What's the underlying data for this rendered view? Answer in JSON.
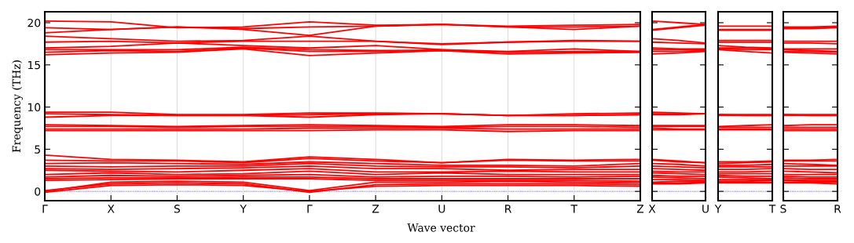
{
  "chart_data": [
    {
      "type": "line",
      "ylabel": "Frequency (THz)",
      "xlabel": "Wave vector",
      "categories": [
        "Γ",
        "X",
        "S",
        "Y",
        "Γ",
        "Z",
        "U",
        "R",
        "T",
        "Z"
      ],
      "ylim": [
        -1.1,
        21.3
      ],
      "yticks": [
        0,
        5,
        10,
        15,
        20
      ],
      "grid": "x",
      "line_style": "solid",
      "marker": "none",
      "ref_lines": [
        {
          "axis": "y",
          "value": 0,
          "color": "#0000ff",
          "line_style": "dotted"
        }
      ],
      "series": [
        {
          "color": "#ff0000",
          "values": [
            20.2,
            20.1,
            19.4,
            19.5,
            20.1,
            19.7,
            19.8,
            19.6,
            19.7,
            19.8
          ]
        },
        {
          "color": "#ff0000",
          "values": [
            19.4,
            19.2,
            19.5,
            19.3,
            19.5,
            19.6,
            19.8,
            19.5,
            19.2,
            19.6
          ]
        },
        {
          "color": "#ff0000",
          "values": [
            18.8,
            19.2,
            19.5,
            19.2,
            18.5,
            19.6,
            19.8,
            19.5,
            19.5,
            19.6
          ]
        },
        {
          "color": "#ff0000",
          "values": [
            18.4,
            18.1,
            17.8,
            17.9,
            18.4,
            17.8,
            17.5,
            17.7,
            17.9,
            17.8
          ]
        },
        {
          "color": "#ff0000",
          "values": [
            17.7,
            17.8,
            17.6,
            17.8,
            17.8,
            17.8,
            17.4,
            17.7,
            17.8,
            17.8
          ]
        },
        {
          "color": "#ff0000",
          "values": [
            17.0,
            17.2,
            17.6,
            17.3,
            17.0,
            17.3,
            16.8,
            16.6,
            16.9,
            16.6
          ]
        },
        {
          "color": "#ff0000",
          "values": [
            16.8,
            16.8,
            16.8,
            17.1,
            16.8,
            16.7,
            16.7,
            16.5,
            16.6,
            16.6
          ]
        },
        {
          "color": "#ff0000",
          "values": [
            16.5,
            16.7,
            16.6,
            17.0,
            16.6,
            16.6,
            16.8,
            16.5,
            16.5,
            16.5
          ]
        },
        {
          "color": "#ff0000",
          "values": [
            16.2,
            16.4,
            16.5,
            16.9,
            16.1,
            16.4,
            16.7,
            16.3,
            16.4,
            16.5
          ]
        },
        {
          "color": "#ff0000",
          "values": [
            9.4,
            9.4,
            9.1,
            9.1,
            9.3,
            9.3,
            9.2,
            9.0,
            9.2,
            9.3
          ]
        },
        {
          "color": "#ff0000",
          "values": [
            9.2,
            9.1,
            9.0,
            9.0,
            9.1,
            9.2,
            9.2,
            9.0,
            9.0,
            9.1
          ]
        },
        {
          "color": "#ff0000",
          "values": [
            8.8,
            9.0,
            9.0,
            9.0,
            8.8,
            9.1,
            9.2,
            9.0,
            9.0,
            9.1
          ]
        },
        {
          "color": "#ff0000",
          "values": [
            7.9,
            7.8,
            7.7,
            7.8,
            7.9,
            7.8,
            7.7,
            7.9,
            7.9,
            7.8
          ]
        },
        {
          "color": "#ff0000",
          "values": [
            7.7,
            7.7,
            7.6,
            7.7,
            7.7,
            7.7,
            7.6,
            7.7,
            7.7,
            7.6
          ]
        },
        {
          "color": "#ff0000",
          "values": [
            7.4,
            7.4,
            7.4,
            7.4,
            7.5,
            7.5,
            7.5,
            7.4,
            7.4,
            7.4
          ]
        },
        {
          "color": "#ff0000",
          "values": [
            7.2,
            7.2,
            7.2,
            7.2,
            7.2,
            7.3,
            7.3,
            7.1,
            7.2,
            7.2
          ]
        },
        {
          "color": "#ff0000",
          "values": [
            4.3,
            3.8,
            3.7,
            3.5,
            4.1,
            3.8,
            3.4,
            3.8,
            3.7,
            3.8
          ]
        },
        {
          "color": "#ff0000",
          "values": [
            3.7,
            3.6,
            3.6,
            3.4,
            3.9,
            3.6,
            3.4,
            3.7,
            3.6,
            3.6
          ]
        },
        {
          "color": "#ff0000",
          "values": [
            3.3,
            3.4,
            3.3,
            3.2,
            3.5,
            3.3,
            3.1,
            3.1,
            3.0,
            3.3
          ]
        },
        {
          "color": "#ff0000",
          "values": [
            3.0,
            2.9,
            3.0,
            3.0,
            3.3,
            3.0,
            2.9,
            2.9,
            2.8,
            3.0
          ]
        },
        {
          "color": "#ff0000",
          "values": [
            2.7,
            2.6,
            2.7,
            2.8,
            3.0,
            2.7,
            2.7,
            2.5,
            2.6,
            2.6
          ]
        },
        {
          "color": "#ff0000",
          "values": [
            2.5,
            2.4,
            2.3,
            2.5,
            2.7,
            2.3,
            2.3,
            2.4,
            2.3,
            2.3
          ]
        },
        {
          "color": "#ff0000",
          "values": [
            2.0,
            2.2,
            2.0,
            2.1,
            2.4,
            2.0,
            2.2,
            2.0,
            2.0,
            2.0
          ]
        },
        {
          "color": "#ff0000",
          "values": [
            1.7,
            1.9,
            1.8,
            1.9,
            2.0,
            1.7,
            1.8,
            1.8,
            1.7,
            1.8
          ]
        },
        {
          "color": "#ff0000",
          "values": [
            1.5,
            1.6,
            1.6,
            1.7,
            1.7,
            1.5,
            1.5,
            1.5,
            1.5,
            1.5
          ]
        },
        {
          "color": "#ff0000",
          "values": [
            1.3,
            1.4,
            1.5,
            1.5,
            1.5,
            1.3,
            1.3,
            1.3,
            1.3,
            1.2
          ]
        },
        {
          "color": "#ff0000",
          "values": [
            0,
            1.1,
            1.2,
            1.1,
            0.1,
            1.1,
            1.1,
            1.2,
            1.1,
            1.0
          ]
        },
        {
          "color": "#ff0000",
          "values": [
            0.1,
            0.9,
            1.0,
            0.9,
            -0.1,
            0.8,
            0.9,
            0.9,
            0.9,
            0.8
          ]
        },
        {
          "color": "#ff0000",
          "values": [
            -0.1,
            0.7,
            0.8,
            0.7,
            0,
            0.6,
            0.7,
            0.7,
            0.7,
            0.6
          ]
        }
      ]
    },
    {
      "type": "line",
      "categories": [
        "X",
        null,
        "U"
      ],
      "ylim": [
        -1.1,
        21.3
      ],
      "yticks": [
        0,
        5,
        10,
        15,
        20
      ],
      "tick_labels": "x",
      "line_style": "solid",
      "marker": "none",
      "ref_lines": [
        {
          "axis": "y",
          "value": 0,
          "color": "#0000ff",
          "line_style": "dotted"
        }
      ],
      "series": [
        {
          "color": "#ff0000",
          "values": [
            20.2,
            20.0,
            19.8
          ]
        },
        {
          "color": "#ff0000",
          "values": [
            19.2,
            19.5,
            19.8
          ]
        },
        {
          "color": "#ff0000",
          "values": [
            19.1,
            19.4,
            19.7
          ]
        },
        {
          "color": "#ff0000",
          "values": [
            18.1,
            17.9,
            17.6
          ]
        },
        {
          "color": "#ff0000",
          "values": [
            17.7,
            17.6,
            17.5
          ]
        },
        {
          "color": "#ff0000",
          "values": [
            17.0,
            16.9,
            16.9
          ]
        },
        {
          "color": "#ff0000",
          "values": [
            16.8,
            16.8,
            16.8
          ]
        },
        {
          "color": "#ff0000",
          "values": [
            16.6,
            16.6,
            16.7
          ]
        },
        {
          "color": "#ff0000",
          "values": [
            16.3,
            16.4,
            16.6
          ]
        },
        {
          "color": "#ff0000",
          "values": [
            9.4,
            9.3,
            9.2
          ]
        },
        {
          "color": "#ff0000",
          "values": [
            9.2,
            9.2,
            9.2
          ]
        },
        {
          "color": "#ff0000",
          "values": [
            9.1,
            9.1,
            9.2
          ]
        },
        {
          "color": "#ff0000",
          "values": [
            7.8,
            7.8,
            7.8
          ]
        },
        {
          "color": "#ff0000",
          "values": [
            7.7,
            7.7,
            7.7
          ]
        },
        {
          "color": "#ff0000",
          "values": [
            7.5,
            7.4,
            7.4
          ]
        },
        {
          "color": "#ff0000",
          "values": [
            7.3,
            7.3,
            7.3
          ]
        },
        {
          "color": "#ff0000",
          "values": [
            3.8,
            3.6,
            3.4
          ]
        },
        {
          "color": "#ff0000",
          "values": [
            3.7,
            3.5,
            3.4
          ]
        },
        {
          "color": "#ff0000",
          "values": [
            3.3,
            3.2,
            3.0
          ]
        },
        {
          "color": "#ff0000",
          "values": [
            3.0,
            2.9,
            2.8
          ]
        },
        {
          "color": "#ff0000",
          "values": [
            2.7,
            2.6,
            2.5
          ]
        },
        {
          "color": "#ff0000",
          "values": [
            2.4,
            2.3,
            2.3
          ]
        },
        {
          "color": "#ff0000",
          "values": [
            2.2,
            2.1,
            2.0
          ]
        },
        {
          "color": "#ff0000",
          "values": [
            1.9,
            1.8,
            1.8
          ]
        },
        {
          "color": "#ff0000",
          "values": [
            1.7,
            1.6,
            1.5
          ]
        },
        {
          "color": "#ff0000",
          "values": [
            1.4,
            1.4,
            1.3
          ]
        },
        {
          "color": "#ff0000",
          "values": [
            1.1,
            1.2,
            1.2
          ]
        },
        {
          "color": "#ff0000",
          "values": [
            1.0,
            1.0,
            1.1
          ]
        },
        {
          "color": "#ff0000",
          "values": [
            0.9,
            0.9,
            1.0
          ]
        }
      ]
    },
    {
      "type": "line",
      "categories": [
        "Y",
        null,
        "T"
      ],
      "ylim": [
        -1.1,
        21.3
      ],
      "yticks": [
        0,
        5,
        10,
        15,
        20
      ],
      "tick_labels": "x",
      "line_style": "solid",
      "marker": "none",
      "ref_lines": [
        {
          "axis": "y",
          "value": 0,
          "color": "#0000ff",
          "line_style": "dotted"
        }
      ],
      "series": [
        {
          "color": "#ff0000",
          "values": [
            19.6,
            19.6,
            19.6
          ]
        },
        {
          "color": "#ff0000",
          "values": [
            19.2,
            19.2,
            19.2
          ]
        },
        {
          "color": "#ff0000",
          "values": [
            19.1,
            19.1,
            19.1
          ]
        },
        {
          "color": "#ff0000",
          "values": [
            17.9,
            17.9,
            17.9
          ]
        },
        {
          "color": "#ff0000",
          "values": [
            17.7,
            17.7,
            17.7
          ]
        },
        {
          "color": "#ff0000",
          "values": [
            17.3,
            17.1,
            17.0
          ]
        },
        {
          "color": "#ff0000",
          "values": [
            17.0,
            17.0,
            16.9
          ]
        },
        {
          "color": "#ff0000",
          "values": [
            16.9,
            16.8,
            16.8
          ]
        },
        {
          "color": "#ff0000",
          "values": [
            16.8,
            16.6,
            16.4
          ]
        },
        {
          "color": "#ff0000",
          "values": [
            9.1,
            9.1,
            9.1
          ]
        },
        {
          "color": "#ff0000",
          "values": [
            9.1,
            9.0,
            9.0
          ]
        },
        {
          "color": "#ff0000",
          "values": [
            9.0,
            9.0,
            9.0
          ]
        },
        {
          "color": "#ff0000",
          "values": [
            7.7,
            7.8,
            7.9
          ]
        },
        {
          "color": "#ff0000",
          "values": [
            7.6,
            7.6,
            7.6
          ]
        },
        {
          "color": "#ff0000",
          "values": [
            7.4,
            7.4,
            7.4
          ]
        },
        {
          "color": "#ff0000",
          "values": [
            7.3,
            7.3,
            7.3
          ]
        },
        {
          "color": "#ff0000",
          "values": [
            3.5,
            3.5,
            3.6
          ]
        },
        {
          "color": "#ff0000",
          "values": [
            3.3,
            3.4,
            3.5
          ]
        },
        {
          "color": "#ff0000",
          "values": [
            3.1,
            3.1,
            3.2
          ]
        },
        {
          "color": "#ff0000",
          "values": [
            2.9,
            2.9,
            2.9
          ]
        },
        {
          "color": "#ff0000",
          "values": [
            2.6,
            2.6,
            2.7
          ]
        },
        {
          "color": "#ff0000",
          "values": [
            2.3,
            2.3,
            2.4
          ]
        },
        {
          "color": "#ff0000",
          "values": [
            2.1,
            2.1,
            2.1
          ]
        },
        {
          "color": "#ff0000",
          "values": [
            1.9,
            1.8,
            1.8
          ]
        },
        {
          "color": "#ff0000",
          "values": [
            1.7,
            1.6,
            1.5
          ]
        },
        {
          "color": "#ff0000",
          "values": [
            1.4,
            1.4,
            1.4
          ]
        },
        {
          "color": "#ff0000",
          "values": [
            1.2,
            1.2,
            1.3
          ]
        },
        {
          "color": "#ff0000",
          "values": [
            1.1,
            1.1,
            1.1
          ]
        },
        {
          "color": "#ff0000",
          "values": [
            1.0,
            1.0,
            1.0
          ]
        }
      ]
    },
    {
      "type": "line",
      "categories": [
        "S",
        null,
        "R"
      ],
      "ylim": [
        -1.1,
        21.3
      ],
      "yticks": [
        0,
        5,
        10,
        15,
        20
      ],
      "tick_labels": "x",
      "line_style": "solid",
      "marker": "none",
      "ref_lines": [
        {
          "axis": "y",
          "value": 0,
          "color": "#0000ff",
          "line_style": "dotted"
        }
      ],
      "series": [
        {
          "color": "#ff0000",
          "values": [
            19.5,
            19.5,
            19.6
          ]
        },
        {
          "color": "#ff0000",
          "values": [
            19.4,
            19.4,
            19.5
          ]
        },
        {
          "color": "#ff0000",
          "values": [
            19.3,
            19.3,
            19.4
          ]
        },
        {
          "color": "#ff0000",
          "values": [
            17.8,
            17.8,
            17.8
          ]
        },
        {
          "color": "#ff0000",
          "values": [
            17.6,
            17.6,
            17.5
          ]
        },
        {
          "color": "#ff0000",
          "values": [
            16.9,
            16.9,
            16.9
          ]
        },
        {
          "color": "#ff0000",
          "values": [
            16.8,
            16.7,
            16.6
          ]
        },
        {
          "color": "#ff0000",
          "values": [
            16.6,
            16.6,
            16.5
          ]
        },
        {
          "color": "#ff0000",
          "values": [
            16.5,
            16.4,
            16.3
          ]
        },
        {
          "color": "#ff0000",
          "values": [
            9.1,
            9.1,
            9.1
          ]
        },
        {
          "color": "#ff0000",
          "values": [
            9.1,
            9.0,
            9.0
          ]
        },
        {
          "color": "#ff0000",
          "values": [
            9.0,
            9.0,
            9.0
          ]
        },
        {
          "color": "#ff0000",
          "values": [
            7.8,
            7.9,
            7.9
          ]
        },
        {
          "color": "#ff0000",
          "values": [
            7.6,
            7.6,
            7.6
          ]
        },
        {
          "color": "#ff0000",
          "values": [
            7.4,
            7.4,
            7.4
          ]
        },
        {
          "color": "#ff0000",
          "values": [
            7.2,
            7.2,
            7.2
          ]
        },
        {
          "color": "#ff0000",
          "values": [
            3.7,
            3.7,
            3.8
          ]
        },
        {
          "color": "#ff0000",
          "values": [
            3.6,
            3.6,
            3.6
          ]
        },
        {
          "color": "#ff0000",
          "values": [
            3.3,
            3.2,
            3.1
          ]
        },
        {
          "color": "#ff0000",
          "values": [
            3.0,
            3.0,
            3.0
          ]
        },
        {
          "color": "#ff0000",
          "values": [
            2.7,
            2.6,
            2.6
          ]
        },
        {
          "color": "#ff0000",
          "values": [
            2.4,
            2.3,
            2.2
          ]
        },
        {
          "color": "#ff0000",
          "values": [
            2.0,
            2.0,
            2.0
          ]
        },
        {
          "color": "#ff0000",
          "values": [
            1.8,
            1.7,
            1.7
          ]
        },
        {
          "color": "#ff0000",
          "values": [
            1.6,
            1.5,
            1.5
          ]
        },
        {
          "color": "#ff0000",
          "values": [
            1.4,
            1.3,
            1.3
          ]
        },
        {
          "color": "#ff0000",
          "values": [
            1.3,
            1.2,
            1.2
          ]
        },
        {
          "color": "#ff0000",
          "values": [
            1.1,
            1.1,
            1.1
          ]
        },
        {
          "color": "#ff0000",
          "values": [
            1.0,
            1.0,
            0.9
          ]
        }
      ]
    }
  ]
}
